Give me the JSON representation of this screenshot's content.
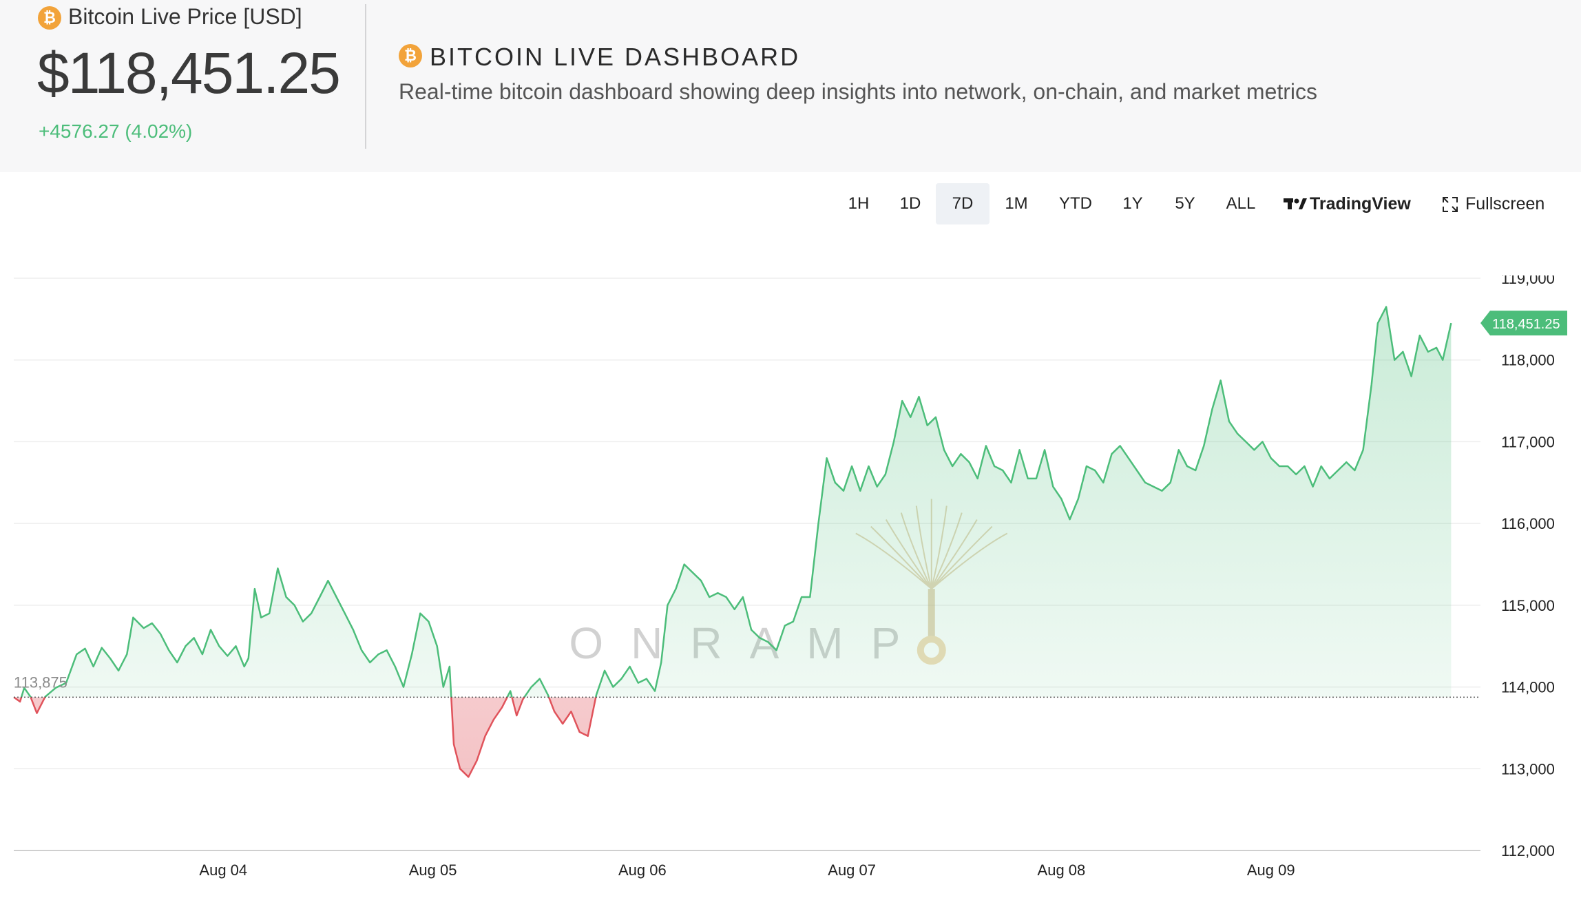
{
  "header": {
    "price_label": "Bitcoin Live Price [USD]",
    "price_value": "$118,451.25",
    "price_change": "+4576.27 (4.02%)",
    "dashboard_title": "BITCOIN LIVE DASHBOARD",
    "dashboard_subtitle": "Real-time bitcoin dashboard showing deep insights into network, on-chain, and market metrics",
    "btc_icon": "bitcoin-icon",
    "btc_glyph": "₿"
  },
  "toolbar": {
    "timeframes": [
      "1H",
      "1D",
      "7D",
      "1M",
      "YTD",
      "1Y",
      "5Y",
      "ALL"
    ],
    "active": "7D",
    "tradingview_label": "TradingView",
    "fullscreen_label": "Fullscreen"
  },
  "colors": {
    "up": "#4cbd7a",
    "down": "#e0535b",
    "accent": "#f2a33a"
  },
  "watermark": "ONRAMP",
  "chart_data": {
    "type": "area",
    "baseline": 113875,
    "baseline_label": "113,875",
    "last_price_label": "118,451.25",
    "ylim": [
      112000,
      119000
    ],
    "y_ticks": [
      112000,
      113000,
      114000,
      115000,
      116000,
      117000,
      118000,
      119000
    ],
    "y_tick_labels": [
      "112,000",
      "113,000",
      "114,000",
      "115,000",
      "116,000",
      "117,000",
      "118,000",
      "119,000"
    ],
    "x_range": [
      0,
      7
    ],
    "x_ticks": [
      1,
      2,
      3,
      4,
      5,
      6
    ],
    "x_tick_labels": [
      "Aug 04",
      "Aug 05",
      "Aug 06",
      "Aug 07",
      "Aug 08",
      "Aug 09"
    ],
    "series": [
      {
        "points": [
          [
            0.0,
            113875
          ],
          [
            0.03,
            113820
          ],
          [
            0.05,
            113990
          ],
          [
            0.08,
            113880
          ],
          [
            0.11,
            113680
          ],
          [
            0.15,
            113880
          ],
          [
            0.2,
            113990
          ],
          [
            0.25,
            114050
          ],
          [
            0.3,
            114400
          ],
          [
            0.34,
            114470
          ],
          [
            0.38,
            114250
          ],
          [
            0.42,
            114480
          ],
          [
            0.46,
            114350
          ],
          [
            0.5,
            114200
          ],
          [
            0.54,
            114400
          ],
          [
            0.57,
            114850
          ],
          [
            0.62,
            114720
          ],
          [
            0.66,
            114780
          ],
          [
            0.7,
            114650
          ],
          [
            0.74,
            114450
          ],
          [
            0.78,
            114300
          ],
          [
            0.82,
            114500
          ],
          [
            0.86,
            114600
          ],
          [
            0.9,
            114400
          ],
          [
            0.94,
            114700
          ],
          [
            0.98,
            114500
          ],
          [
            1.02,
            114380
          ],
          [
            1.06,
            114500
          ],
          [
            1.1,
            114250
          ],
          [
            1.12,
            114350
          ],
          [
            1.15,
            115200
          ],
          [
            1.18,
            114850
          ],
          [
            1.22,
            114900
          ],
          [
            1.26,
            115450
          ],
          [
            1.3,
            115100
          ],
          [
            1.34,
            115000
          ],
          [
            1.38,
            114800
          ],
          [
            1.42,
            114900
          ],
          [
            1.46,
            115100
          ],
          [
            1.5,
            115300
          ],
          [
            1.54,
            115100
          ],
          [
            1.58,
            114900
          ],
          [
            1.62,
            114700
          ],
          [
            1.66,
            114450
          ],
          [
            1.7,
            114300
          ],
          [
            1.74,
            114400
          ],
          [
            1.78,
            114450
          ],
          [
            1.82,
            114250
          ],
          [
            1.86,
            114000
          ],
          [
            1.9,
            114400
          ],
          [
            1.94,
            114900
          ],
          [
            1.98,
            114800
          ],
          [
            2.02,
            114500
          ],
          [
            2.05,
            114000
          ],
          [
            2.08,
            114250
          ],
          [
            2.1,
            113300
          ],
          [
            2.13,
            113000
          ],
          [
            2.17,
            112900
          ],
          [
            2.21,
            113100
          ],
          [
            2.25,
            113400
          ],
          [
            2.29,
            113600
          ],
          [
            2.33,
            113750
          ],
          [
            2.37,
            113950
          ],
          [
            2.4,
            113650
          ],
          [
            2.43,
            113850
          ],
          [
            2.47,
            114000
          ],
          [
            2.51,
            114100
          ],
          [
            2.55,
            113900
          ],
          [
            2.58,
            113700
          ],
          [
            2.62,
            113550
          ],
          [
            2.66,
            113700
          ],
          [
            2.7,
            113450
          ],
          [
            2.74,
            113400
          ],
          [
            2.78,
            113900
          ],
          [
            2.82,
            114200
          ],
          [
            2.86,
            114000
          ],
          [
            2.9,
            114100
          ],
          [
            2.94,
            114250
          ],
          [
            2.98,
            114050
          ],
          [
            3.02,
            114100
          ],
          [
            3.06,
            113950
          ],
          [
            3.09,
            114300
          ],
          [
            3.12,
            115000
          ],
          [
            3.16,
            115200
          ],
          [
            3.2,
            115500
          ],
          [
            3.24,
            115400
          ],
          [
            3.28,
            115300
          ],
          [
            3.32,
            115100
          ],
          [
            3.36,
            115150
          ],
          [
            3.4,
            115100
          ],
          [
            3.44,
            114950
          ],
          [
            3.48,
            115100
          ],
          [
            3.52,
            114700
          ],
          [
            3.56,
            114600
          ],
          [
            3.6,
            114550
          ],
          [
            3.64,
            114450
          ],
          [
            3.68,
            114750
          ],
          [
            3.72,
            114800
          ],
          [
            3.76,
            115100
          ],
          [
            3.8,
            115100
          ],
          [
            3.84,
            116000
          ],
          [
            3.88,
            116800
          ],
          [
            3.92,
            116500
          ],
          [
            3.96,
            116400
          ],
          [
            4.0,
            116700
          ],
          [
            4.04,
            116400
          ],
          [
            4.08,
            116700
          ],
          [
            4.12,
            116450
          ],
          [
            4.16,
            116600
          ],
          [
            4.2,
            117000
          ],
          [
            4.24,
            117500
          ],
          [
            4.28,
            117300
          ],
          [
            4.32,
            117550
          ],
          [
            4.36,
            117200
          ],
          [
            4.4,
            117300
          ],
          [
            4.44,
            116900
          ],
          [
            4.48,
            116700
          ],
          [
            4.52,
            116850
          ],
          [
            4.56,
            116750
          ],
          [
            4.6,
            116550
          ],
          [
            4.64,
            116950
          ],
          [
            4.68,
            116700
          ],
          [
            4.72,
            116650
          ],
          [
            4.76,
            116500
          ],
          [
            4.8,
            116900
          ],
          [
            4.84,
            116550
          ],
          [
            4.88,
            116550
          ],
          [
            4.92,
            116900
          ],
          [
            4.96,
            116450
          ],
          [
            5.0,
            116300
          ],
          [
            5.04,
            116050
          ],
          [
            5.08,
            116300
          ],
          [
            5.12,
            116700
          ],
          [
            5.16,
            116650
          ],
          [
            5.2,
            116500
          ],
          [
            5.24,
            116850
          ],
          [
            5.28,
            116950
          ],
          [
            5.32,
            116800
          ],
          [
            5.36,
            116650
          ],
          [
            5.4,
            116500
          ],
          [
            5.44,
            116450
          ],
          [
            5.48,
            116400
          ],
          [
            5.52,
            116500
          ],
          [
            5.56,
            116900
          ],
          [
            5.6,
            116700
          ],
          [
            5.64,
            116650
          ],
          [
            5.68,
            116950
          ],
          [
            5.72,
            117400
          ],
          [
            5.76,
            117750
          ],
          [
            5.8,
            117250
          ],
          [
            5.84,
            117100
          ],
          [
            5.88,
            117000
          ],
          [
            5.92,
            116900
          ],
          [
            5.96,
            117000
          ],
          [
            6.0,
            116800
          ],
          [
            6.04,
            116700
          ],
          [
            6.08,
            116700
          ],
          [
            6.12,
            116600
          ],
          [
            6.16,
            116700
          ],
          [
            6.2,
            116450
          ],
          [
            6.24,
            116700
          ],
          [
            6.28,
            116550
          ],
          [
            6.32,
            116650
          ],
          [
            6.36,
            116750
          ],
          [
            6.4,
            116650
          ],
          [
            6.44,
            116900
          ],
          [
            6.48,
            117700
          ],
          [
            6.51,
            118450
          ],
          [
            6.55,
            118650
          ],
          [
            6.59,
            118000
          ],
          [
            6.63,
            118100
          ],
          [
            6.67,
            117800
          ],
          [
            6.71,
            118300
          ],
          [
            6.75,
            118100
          ],
          [
            6.79,
            118150
          ],
          [
            6.82,
            118000
          ],
          [
            6.86,
            118451.25
          ]
        ]
      }
    ]
  }
}
